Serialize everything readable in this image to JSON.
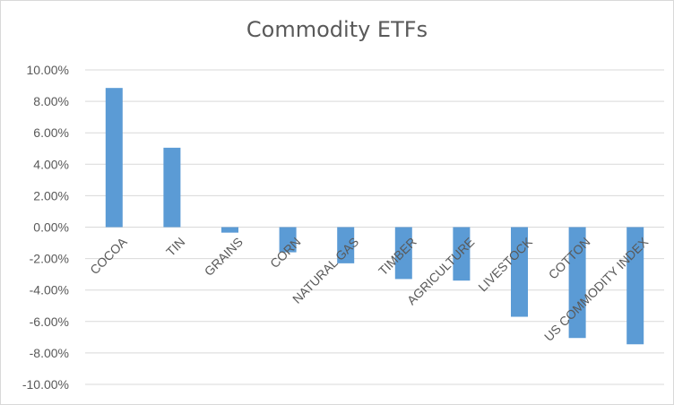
{
  "chart_data": {
    "type": "bar",
    "title": "Commodity ETFs",
    "xlabel": "",
    "ylabel": "",
    "categories": [
      "COCOA",
      "TIN",
      "GRAINS",
      "CORN",
      "NATURAL GAS",
      "TIMBER",
      "AGRICULTURE",
      "LIVESTOCK",
      "COTTON",
      "US COMMODITY INDEX"
    ],
    "values": [
      8.85,
      5.05,
      -0.35,
      -1.6,
      -2.3,
      -3.3,
      -3.4,
      -5.7,
      -7.05,
      -7.45
    ],
    "ylim": [
      -10,
      10
    ],
    "yticks": [
      "10.00%",
      "8.00%",
      "6.00%",
      "4.00%",
      "2.00%",
      "0.00%",
      "-2.00%",
      "-4.00%",
      "-6.00%",
      "-8.00%",
      "-10.00%"
    ],
    "grid": true,
    "legend": "none",
    "colors": {
      "bar": "#5b9bd5",
      "grid": "#d9d9d9",
      "text": "#595959"
    }
  }
}
